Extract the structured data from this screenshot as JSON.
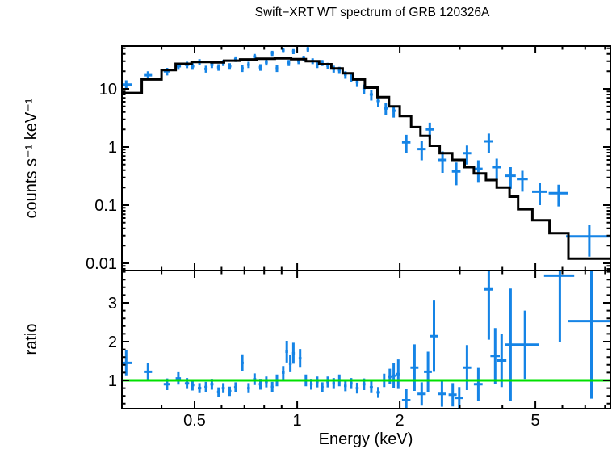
{
  "title": "Swift−XRT WT spectrum of GRB 120326A",
  "colors": {
    "data_points": "#1584e6",
    "model_line": "#000000",
    "unity_line": "#00e000",
    "frame": "#000000",
    "background": "#ffffff"
  },
  "chart_data": [
    {
      "type": "scatter",
      "panel": "spectrum",
      "title": "Swift−XRT WT spectrum of GRB 120326A",
      "ylabel": "counts s⁻¹ keV⁻¹",
      "xscale": "log",
      "yscale": "log",
      "xlim": [
        0.306,
        8.3
      ],
      "ylim": [
        0.0075,
        54.5
      ],
      "grid": false,
      "legend": "none",
      "y_tick_labels": [
        {
          "value": 10,
          "label": "10"
        },
        {
          "value": 1,
          "label": "1"
        },
        {
          "value": 0.1,
          "label": "0.1"
        },
        {
          "value": 0.01,
          "label": "0.01"
        }
      ],
      "series": [
        {
          "name": "observed data",
          "type": "errorbar_cross",
          "color": "#1584e6",
          "point_format": "[energy_keV, energy_err_keV, counts_per_s_per_keV, counts_err]",
          "points": [
            [
              0.315,
              0.012,
              11.8,
              2.2
            ],
            [
              0.365,
              0.01,
              17.2,
              2.8
            ],
            [
              0.415,
              0.009,
              20.0,
              3.0
            ],
            [
              0.448,
              0.008,
              24.5,
              3.2
            ],
            [
              0.475,
              0.007,
              26.0,
              3.3
            ],
            [
              0.493,
              0.006,
              24.5,
              3.2
            ],
            [
              0.517,
              0.006,
              29.0,
              3.4
            ],
            [
              0.54,
              0.006,
              22.0,
              3.0
            ],
            [
              0.562,
              0.006,
              26.0,
              3.2
            ],
            [
              0.588,
              0.006,
              23.5,
              3.0
            ],
            [
              0.607,
              0.006,
              28.0,
              3.3
            ],
            [
              0.634,
              0.007,
              24.5,
              3.1
            ],
            [
              0.66,
              0.007,
              32.5,
              3.6
            ],
            [
              0.69,
              0.007,
              22.5,
              3.0
            ],
            [
              0.72,
              0.007,
              26.0,
              3.2
            ],
            [
              0.75,
              0.008,
              36.0,
              3.8
            ],
            [
              0.78,
              0.008,
              23.5,
              3.0
            ],
            [
              0.812,
              0.008,
              28.5,
              3.3
            ],
            [
              0.845,
              0.008,
              41.0,
              4.2
            ],
            [
              0.872,
              0.008,
              22.5,
              3.0
            ],
            [
              0.91,
              0.009,
              46.0,
              4.5
            ],
            [
              0.945,
              0.009,
              28.0,
              3.3
            ],
            [
              0.975,
              0.009,
              44.0,
              4.4
            ],
            [
              1.01,
              0.01,
              30.0,
              3.4
            ],
            [
              1.045,
              0.01,
              33.5,
              3.6
            ],
            [
              1.075,
              0.01,
              48.0,
              4.6
            ],
            [
              1.11,
              0.01,
              30.0,
              3.4
            ],
            [
              1.145,
              0.011,
              26.0,
              3.2
            ],
            [
              1.185,
              0.011,
              28.0,
              3.3
            ],
            [
              1.23,
              0.012,
              25.0,
              3.1
            ],
            [
              1.28,
              0.012,
              22.0,
              3.0
            ],
            [
              1.33,
              0.013,
              21.0,
              2.9
            ],
            [
              1.385,
              0.013,
              17.5,
              2.6
            ],
            [
              1.44,
              0.014,
              15.5,
              2.5
            ],
            [
              1.5,
              0.015,
              13.0,
              2.2
            ],
            [
              1.57,
              0.016,
              10.0,
              1.9
            ],
            [
              1.65,
              0.018,
              8.0,
              1.7
            ],
            [
              1.73,
              0.02,
              6.2,
              1.4
            ],
            [
              1.82,
              0.022,
              4.6,
              1.1
            ],
            [
              1.92,
              0.024,
              4.2,
              1.0
            ],
            [
              2.09,
              0.06,
              1.2,
              0.42
            ],
            [
              2.32,
              0.065,
              0.92,
              0.33
            ],
            [
              2.45,
              0.065,
              2.0,
              0.62
            ],
            [
              2.67,
              0.075,
              0.6,
              0.24
            ],
            [
              2.93,
              0.085,
              0.38,
              0.16
            ],
            [
              3.15,
              0.09,
              0.78,
              0.28
            ],
            [
              3.4,
              0.1,
              0.42,
              0.17
            ],
            [
              3.65,
              0.11,
              1.25,
              0.45
            ],
            [
              3.85,
              0.12,
              0.45,
              0.18
            ],
            [
              4.23,
              0.15,
              0.32,
              0.13
            ],
            [
              4.58,
              0.17,
              0.28,
              0.11
            ],
            [
              5.15,
              0.26,
              0.17,
              0.07
            ],
            [
              5.85,
              0.38,
              0.16,
              0.065
            ],
            [
              7.2,
              1.05,
              0.029,
              0.016
            ]
          ]
        },
        {
          "name": "folded model",
          "type": "histogram",
          "color": "#000000",
          "bin_format": "[E_low_keV, E_high_keV, counts_per_s_per_keV]",
          "bins": [
            [
              0.306,
              0.35,
              8.5
            ],
            [
              0.35,
              0.4,
              14.5
            ],
            [
              0.4,
              0.44,
              21
            ],
            [
              0.44,
              0.49,
              27
            ],
            [
              0.49,
              0.56,
              29
            ],
            [
              0.56,
              0.61,
              28.5
            ],
            [
              0.61,
              0.68,
              30.5
            ],
            [
              0.68,
              0.76,
              32
            ],
            [
              0.76,
              0.86,
              33
            ],
            [
              0.86,
              0.96,
              33.5
            ],
            [
              0.96,
              1.06,
              32.5
            ],
            [
              1.06,
              1.16,
              30
            ],
            [
              1.16,
              1.26,
              26.5
            ],
            [
              1.26,
              1.36,
              22.5
            ],
            [
              1.36,
              1.46,
              18.5
            ],
            [
              1.46,
              1.58,
              14.5
            ],
            [
              1.58,
              1.72,
              10.5
            ],
            [
              1.72,
              1.86,
              7.2
            ],
            [
              1.86,
              2.0,
              5.0
            ],
            [
              2.0,
              2.16,
              3.4
            ],
            [
              2.16,
              2.3,
              2.2
            ],
            [
              2.3,
              2.45,
              1.55
            ],
            [
              2.45,
              2.62,
              1.05
            ],
            [
              2.62,
              2.85,
              0.78
            ],
            [
              2.85,
              3.1,
              0.6
            ],
            [
              3.1,
              3.3,
              0.45
            ],
            [
              3.3,
              3.58,
              0.35
            ],
            [
              3.58,
              3.85,
              0.27
            ],
            [
              3.85,
              4.2,
              0.2
            ],
            [
              4.2,
              4.45,
              0.14
            ],
            [
              4.45,
              4.9,
              0.085
            ],
            [
              4.9,
              5.5,
              0.055
            ],
            [
              5.5,
              6.25,
              0.033
            ],
            [
              6.25,
              8.3,
              0.012
            ]
          ]
        }
      ]
    },
    {
      "type": "scatter",
      "panel": "ratio",
      "xlabel": "Energy (keV)",
      "ylabel": "ratio",
      "xscale": "log",
      "yscale": "linear",
      "xlim": [
        0.306,
        8.3
      ],
      "ylim": [
        0.271,
        3.833
      ],
      "grid": false,
      "legend": "none",
      "x_tick_labels": [
        {
          "value": 0.5,
          "label": "0.5"
        },
        {
          "value": 1,
          "label": "1"
        },
        {
          "value": 2,
          "label": "2"
        },
        {
          "value": 5,
          "label": "5"
        }
      ],
      "y_tick_labels": [
        {
          "value": 1,
          "label": "1"
        },
        {
          "value": 2,
          "label": "2"
        },
        {
          "value": 3,
          "label": "3"
        }
      ],
      "series": [
        {
          "name": "data / model ratio",
          "type": "errorbar_cross",
          "color": "#1584e6",
          "point_format": "[energy_keV, energy_err_keV, ratio, ratio_err]",
          "points": [
            [
              0.315,
              0.012,
              1.45,
              0.32
            ],
            [
              0.365,
              0.01,
              1.22,
              0.22
            ],
            [
              0.415,
              0.009,
              0.9,
              0.15
            ],
            [
              0.448,
              0.008,
              1.05,
              0.16
            ],
            [
              0.475,
              0.007,
              0.92,
              0.14
            ],
            [
              0.493,
              0.006,
              0.88,
              0.14
            ],
            [
              0.517,
              0.006,
              0.8,
              0.13
            ],
            [
              0.54,
              0.006,
              0.83,
              0.13
            ],
            [
              0.562,
              0.006,
              0.9,
              0.14
            ],
            [
              0.588,
              0.006,
              0.7,
              0.12
            ],
            [
              0.607,
              0.006,
              0.8,
              0.13
            ],
            [
              0.634,
              0.007,
              0.72,
              0.12
            ],
            [
              0.66,
              0.007,
              0.82,
              0.13
            ],
            [
              0.69,
              0.007,
              1.45,
              0.22
            ],
            [
              0.72,
              0.007,
              0.8,
              0.13
            ],
            [
              0.75,
              0.008,
              1.03,
              0.15
            ],
            [
              0.78,
              0.008,
              0.9,
              0.14
            ],
            [
              0.812,
              0.008,
              0.96,
              0.14
            ],
            [
              0.845,
              0.008,
              0.83,
              0.13
            ],
            [
              0.872,
              0.008,
              1.0,
              0.15
            ],
            [
              0.91,
              0.009,
              1.2,
              0.17
            ],
            [
              0.932,
              0.009,
              1.74,
              0.28
            ],
            [
              0.955,
              0.009,
              1.43,
              0.22
            ],
            [
              0.975,
              0.009,
              1.7,
              0.27
            ],
            [
              1.02,
              0.01,
              1.57,
              0.24
            ],
            [
              1.06,
              0.01,
              1.0,
              0.15
            ],
            [
              1.1,
              0.01,
              0.9,
              0.14
            ],
            [
              1.145,
              0.011,
              0.96,
              0.14
            ],
            [
              1.185,
              0.011,
              0.82,
              0.13
            ],
            [
              1.23,
              0.012,
              0.96,
              0.14
            ],
            [
              1.28,
              0.012,
              0.92,
              0.14
            ],
            [
              1.33,
              0.013,
              1.0,
              0.15
            ],
            [
              1.385,
              0.013,
              0.86,
              0.14
            ],
            [
              1.44,
              0.014,
              0.92,
              0.14
            ],
            [
              1.5,
              0.015,
              0.8,
              0.14
            ],
            [
              1.57,
              0.016,
              0.9,
              0.15
            ],
            [
              1.65,
              0.018,
              0.82,
              0.15
            ],
            [
              1.73,
              0.02,
              0.69,
              0.14
            ],
            [
              1.8,
              0.022,
              1.0,
              0.17
            ],
            [
              1.87,
              0.023,
              1.1,
              0.2
            ],
            [
              1.92,
              0.024,
              1.12,
              0.32
            ],
            [
              1.98,
              0.025,
              1.16,
              0.38
            ],
            [
              2.09,
              0.06,
              0.49,
              0.28
            ],
            [
              2.21,
              0.06,
              1.33,
              0.6
            ],
            [
              2.32,
              0.065,
              0.65,
              0.3
            ],
            [
              2.42,
              0.065,
              1.22,
              0.52
            ],
            [
              2.52,
              0.068,
              2.14,
              0.92
            ],
            [
              2.66,
              0.075,
              0.65,
              0.33
            ],
            [
              2.86,
              0.078,
              0.63,
              0.3
            ],
            [
              2.99,
              0.08,
              0.55,
              0.28
            ],
            [
              3.15,
              0.09,
              1.33,
              0.58
            ],
            [
              3.4,
              0.1,
              0.9,
              0.42
            ],
            [
              3.65,
              0.11,
              3.35,
              1.3
            ],
            [
              3.81,
              0.12,
              1.63,
              0.72
            ],
            [
              3.98,
              0.13,
              1.51,
              0.68
            ],
            [
              4.23,
              0.15,
              1.92,
              1.45
            ],
            [
              4.66,
              0.45,
              1.92,
              0.88
            ],
            [
              5.9,
              0.6,
              3.7,
              1.7
            ],
            [
              7.3,
              1.05,
              2.53,
              2.0
            ]
          ]
        },
        {
          "name": "unity reference line",
          "type": "hline",
          "y": 1,
          "color": "#00e000"
        }
      ]
    }
  ]
}
